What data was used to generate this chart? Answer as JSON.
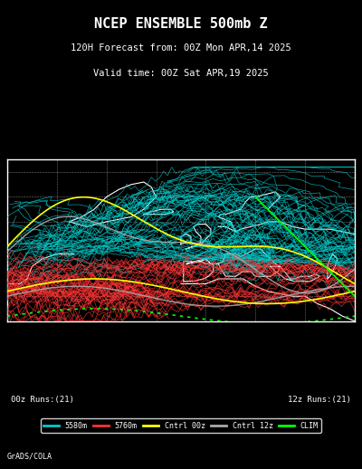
{
  "title_line1": "NCEP ENSEMBLE 500mb Z",
  "title_line2": "120H Forecast from: 00Z Mon APR,14 2025",
  "title_line3": "Valid time: 00Z Sat APR,19 2025",
  "bg_color": "#000000",
  "map_bg": "#000000",
  "land_color": "#000000",
  "coast_color": "#ffffff",
  "grid_color": "#aaaaaa",
  "legend_labels": [
    "5580m",
    "5760m",
    "Cntrl 00z",
    "Cntrl 12z",
    "CLIM"
  ],
  "legend_colors": [
    "#00cccc",
    "#ff3333",
    "#ffff00",
    "#aaaaaa",
    "#00ff00"
  ],
  "color_5580": "#00cccc",
  "color_5760": "#ff3333",
  "color_cntrl00": "#ffff00",
  "color_cntrl12": "#aaaaaa",
  "color_clim": "#00ff00",
  "bottom_left": "00z Runs:(21)",
  "bottom_right": "12z Runs:(21)",
  "credit": "GrADS/COLA",
  "lon_min": -80,
  "lon_max": 60,
  "lat_min": 20,
  "lat_max": 85
}
